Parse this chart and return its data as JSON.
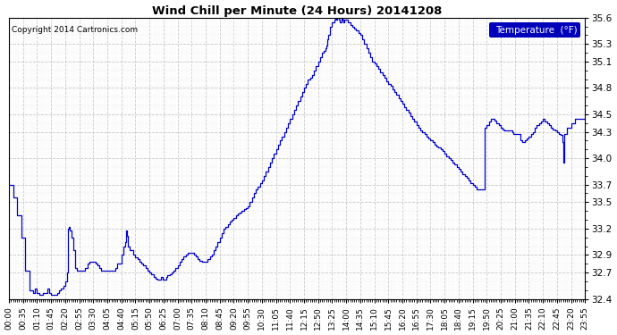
{
  "title": "Wind Chill per Minute (24 Hours) 20141208",
  "legend_label": "Temperature  (°F)",
  "copyright": "Copyright 2014 Cartronics.com",
  "line_color": "#0000cc",
  "bg_color": "#ffffff",
  "grid_color": "#bbbbbb",
  "ylim": [
    32.4,
    35.6
  ],
  "yticks": [
    32.4,
    32.7,
    32.9,
    33.2,
    33.5,
    33.7,
    34.0,
    34.3,
    34.5,
    34.8,
    35.1,
    35.3,
    35.6
  ],
  "xtick_labels": [
    "00:00",
    "00:35",
    "01:10",
    "01:45",
    "02:20",
    "02:55",
    "03:30",
    "04:05",
    "04:40",
    "05:15",
    "05:50",
    "06:25",
    "07:00",
    "07:35",
    "08:10",
    "08:45",
    "09:20",
    "09:55",
    "10:30",
    "11:05",
    "11:40",
    "12:15",
    "12:50",
    "13:25",
    "14:00",
    "14:35",
    "15:10",
    "15:45",
    "16:20",
    "16:55",
    "17:30",
    "18:05",
    "18:40",
    "19:15",
    "19:50",
    "20:25",
    "21:00",
    "21:35",
    "22:10",
    "22:45",
    "23:20",
    "23:55"
  ],
  "keypoints": [
    [
      0,
      33.7
    ],
    [
      10,
      33.55
    ],
    [
      20,
      33.35
    ],
    [
      30,
      33.1
    ],
    [
      40,
      32.72
    ],
    [
      50,
      32.5
    ],
    [
      60,
      32.47
    ],
    [
      65,
      32.52
    ],
    [
      70,
      32.47
    ],
    [
      75,
      32.45
    ],
    [
      80,
      32.45
    ],
    [
      85,
      32.47
    ],
    [
      90,
      32.47
    ],
    [
      95,
      32.52
    ],
    [
      100,
      32.47
    ],
    [
      105,
      32.45
    ],
    [
      115,
      32.45
    ],
    [
      120,
      32.47
    ],
    [
      125,
      32.5
    ],
    [
      130,
      32.52
    ],
    [
      135,
      32.55
    ],
    [
      140,
      32.6
    ],
    [
      145,
      32.7
    ],
    [
      148,
      33.2
    ],
    [
      150,
      33.22
    ],
    [
      152,
      33.18
    ],
    [
      155,
      33.1
    ],
    [
      160,
      32.95
    ],
    [
      165,
      32.75
    ],
    [
      170,
      32.72
    ],
    [
      175,
      32.72
    ],
    [
      185,
      32.72
    ],
    [
      190,
      32.75
    ],
    [
      195,
      32.8
    ],
    [
      200,
      32.82
    ],
    [
      205,
      32.82
    ],
    [
      210,
      32.82
    ],
    [
      215,
      32.8
    ],
    [
      220,
      32.78
    ],
    [
      225,
      32.75
    ],
    [
      230,
      32.72
    ],
    [
      235,
      32.72
    ],
    [
      240,
      32.72
    ],
    [
      255,
      32.72
    ],
    [
      260,
      32.72
    ],
    [
      265,
      32.75
    ],
    [
      270,
      32.8
    ],
    [
      280,
      32.9
    ],
    [
      285,
      33.0
    ],
    [
      290,
      33.05
    ],
    [
      292,
      33.18
    ],
    [
      295,
      33.12
    ],
    [
      297,
      33.0
    ],
    [
      300,
      32.95
    ],
    [
      310,
      32.9
    ],
    [
      315,
      32.87
    ],
    [
      320,
      32.85
    ],
    [
      325,
      32.82
    ],
    [
      330,
      32.8
    ],
    [
      335,
      32.78
    ],
    [
      340,
      32.75
    ],
    [
      345,
      32.72
    ],
    [
      350,
      32.7
    ],
    [
      355,
      32.68
    ],
    [
      360,
      32.65
    ],
    [
      365,
      32.63
    ],
    [
      370,
      32.62
    ],
    [
      375,
      32.62
    ],
    [
      378,
      32.65
    ],
    [
      380,
      32.65
    ],
    [
      382,
      32.65
    ],
    [
      384,
      32.62
    ],
    [
      386,
      32.62
    ],
    [
      388,
      32.62
    ],
    [
      390,
      32.62
    ],
    [
      392,
      32.65
    ],
    [
      395,
      32.67
    ],
    [
      400,
      32.68
    ],
    [
      405,
      32.7
    ],
    [
      410,
      32.72
    ],
    [
      415,
      32.75
    ],
    [
      420,
      32.78
    ],
    [
      425,
      32.82
    ],
    [
      430,
      32.85
    ],
    [
      435,
      32.88
    ],
    [
      440,
      32.9
    ],
    [
      445,
      32.92
    ],
    [
      450,
      32.92
    ],
    [
      455,
      32.92
    ],
    [
      460,
      32.9
    ],
    [
      465,
      32.88
    ],
    [
      470,
      32.85
    ],
    [
      475,
      32.83
    ],
    [
      480,
      32.82
    ],
    [
      490,
      32.82
    ],
    [
      495,
      32.85
    ],
    [
      500,
      32.88
    ],
    [
      505,
      32.9
    ],
    [
      510,
      32.95
    ],
    [
      515,
      33.0
    ],
    [
      520,
      33.05
    ],
    [
      525,
      33.1
    ],
    [
      530,
      33.15
    ],
    [
      535,
      33.2
    ],
    [
      540,
      33.22
    ],
    [
      545,
      33.25
    ],
    [
      550,
      33.28
    ],
    [
      555,
      33.3
    ],
    [
      560,
      33.32
    ],
    [
      565,
      33.35
    ],
    [
      570,
      33.37
    ],
    [
      575,
      33.38
    ],
    [
      580,
      33.4
    ],
    [
      585,
      33.42
    ],
    [
      590,
      33.43
    ],
    [
      595,
      33.45
    ],
    [
      600,
      33.5
    ],
    [
      605,
      33.55
    ],
    [
      610,
      33.6
    ],
    [
      615,
      33.65
    ],
    [
      620,
      33.68
    ],
    [
      625,
      33.72
    ],
    [
      630,
      33.75
    ],
    [
      635,
      33.8
    ],
    [
      640,
      33.85
    ],
    [
      645,
      33.9
    ],
    [
      650,
      33.95
    ],
    [
      655,
      34.0
    ],
    [
      660,
      34.05
    ],
    [
      665,
      34.1
    ],
    [
      670,
      34.15
    ],
    [
      675,
      34.2
    ],
    [
      680,
      34.25
    ],
    [
      685,
      34.3
    ],
    [
      690,
      34.35
    ],
    [
      695,
      34.4
    ],
    [
      700,
      34.45
    ],
    [
      705,
      34.5
    ],
    [
      710,
      34.55
    ],
    [
      715,
      34.6
    ],
    [
      720,
      34.65
    ],
    [
      725,
      34.7
    ],
    [
      730,
      34.75
    ],
    [
      735,
      34.8
    ],
    [
      740,
      34.85
    ],
    [
      745,
      34.9
    ],
    [
      750,
      34.92
    ],
    [
      755,
      34.95
    ],
    [
      760,
      35.0
    ],
    [
      765,
      35.05
    ],
    [
      770,
      35.1
    ],
    [
      775,
      35.15
    ],
    [
      780,
      35.2
    ],
    [
      785,
      35.22
    ],
    [
      788,
      35.25
    ],
    [
      790,
      35.28
    ],
    [
      792,
      35.35
    ],
    [
      795,
      35.4
    ],
    [
      800,
      35.5
    ],
    [
      805,
      35.55
    ],
    [
      810,
      35.58
    ],
    [
      812,
      35.6
    ],
    [
      815,
      35.58
    ],
    [
      817,
      35.6
    ],
    [
      820,
      35.6
    ],
    [
      822,
      35.58
    ],
    [
      825,
      35.55
    ],
    [
      828,
      35.6
    ],
    [
      830,
      35.58
    ],
    [
      833,
      35.55
    ],
    [
      836,
      35.58
    ],
    [
      840,
      35.58
    ],
    [
      845,
      35.55
    ],
    [
      850,
      35.52
    ],
    [
      855,
      35.5
    ],
    [
      860,
      35.48
    ],
    [
      865,
      35.45
    ],
    [
      870,
      35.42
    ],
    [
      875,
      35.4
    ],
    [
      880,
      35.35
    ],
    [
      885,
      35.3
    ],
    [
      890,
      35.25
    ],
    [
      895,
      35.2
    ],
    [
      900,
      35.15
    ],
    [
      905,
      35.1
    ],
    [
      910,
      35.08
    ],
    [
      915,
      35.05
    ],
    [
      920,
      35.02
    ],
    [
      925,
      34.98
    ],
    [
      930,
      34.95
    ],
    [
      935,
      34.92
    ],
    [
      940,
      34.88
    ],
    [
      945,
      34.85
    ],
    [
      950,
      34.82
    ],
    [
      955,
      34.78
    ],
    [
      960,
      34.75
    ],
    [
      965,
      34.72
    ],
    [
      970,
      34.68
    ],
    [
      975,
      34.65
    ],
    [
      980,
      34.62
    ],
    [
      985,
      34.58
    ],
    [
      990,
      34.55
    ],
    [
      995,
      34.52
    ],
    [
      1000,
      34.48
    ],
    [
      1005,
      34.45
    ],
    [
      1010,
      34.42
    ],
    [
      1015,
      34.38
    ],
    [
      1020,
      34.35
    ],
    [
      1025,
      34.32
    ],
    [
      1030,
      34.3
    ],
    [
      1035,
      34.28
    ],
    [
      1040,
      34.25
    ],
    [
      1045,
      34.22
    ],
    [
      1050,
      34.2
    ],
    [
      1055,
      34.18
    ],
    [
      1060,
      34.15
    ],
    [
      1065,
      34.13
    ],
    [
      1070,
      34.12
    ],
    [
      1075,
      34.1
    ],
    [
      1080,
      34.08
    ],
    [
      1085,
      34.05
    ],
    [
      1090,
      34.02
    ],
    [
      1095,
      34.0
    ],
    [
      1100,
      33.98
    ],
    [
      1105,
      33.95
    ],
    [
      1110,
      33.93
    ],
    [
      1115,
      33.9
    ],
    [
      1120,
      33.88
    ],
    [
      1125,
      33.85
    ],
    [
      1130,
      33.82
    ],
    [
      1135,
      33.8
    ],
    [
      1140,
      33.78
    ],
    [
      1145,
      33.75
    ],
    [
      1150,
      33.72
    ],
    [
      1155,
      33.7
    ],
    [
      1160,
      33.68
    ],
    [
      1165,
      33.65
    ],
    [
      1175,
      33.65
    ],
    [
      1185,
      34.35
    ],
    [
      1190,
      34.38
    ],
    [
      1195,
      34.42
    ],
    [
      1200,
      34.45
    ],
    [
      1205,
      34.45
    ],
    [
      1210,
      34.43
    ],
    [
      1215,
      34.4
    ],
    [
      1220,
      34.38
    ],
    [
      1225,
      34.35
    ],
    [
      1228,
      34.35
    ],
    [
      1230,
      34.33
    ],
    [
      1235,
      34.32
    ],
    [
      1240,
      34.32
    ],
    [
      1245,
      34.32
    ],
    [
      1250,
      34.32
    ],
    [
      1253,
      34.3
    ],
    [
      1256,
      34.28
    ],
    [
      1260,
      34.28
    ],
    [
      1265,
      34.28
    ],
    [
      1270,
      34.28
    ],
    [
      1273,
      34.2
    ],
    [
      1278,
      34.18
    ],
    [
      1280,
      34.18
    ],
    [
      1285,
      34.2
    ],
    [
      1290,
      34.22
    ],
    [
      1295,
      34.25
    ],
    [
      1300,
      34.28
    ],
    [
      1305,
      34.3
    ],
    [
      1310,
      34.35
    ],
    [
      1315,
      34.38
    ],
    [
      1320,
      34.4
    ],
    [
      1325,
      34.42
    ],
    [
      1330,
      34.45
    ],
    [
      1335,
      34.42
    ],
    [
      1340,
      34.4
    ],
    [
      1345,
      34.38
    ],
    [
      1350,
      34.35
    ],
    [
      1355,
      34.33
    ],
    [
      1360,
      34.32
    ],
    [
      1365,
      34.3
    ],
    [
      1370,
      34.28
    ],
    [
      1375,
      34.27
    ],
    [
      1378,
      34.18
    ],
    [
      1380,
      34.05
    ],
    [
      1382,
      33.95
    ],
    [
      1383,
      34.28
    ],
    [
      1390,
      34.35
    ],
    [
      1400,
      34.4
    ],
    [
      1410,
      34.45
    ],
    [
      1420,
      34.45
    ],
    [
      1435,
      34.45
    ]
  ]
}
